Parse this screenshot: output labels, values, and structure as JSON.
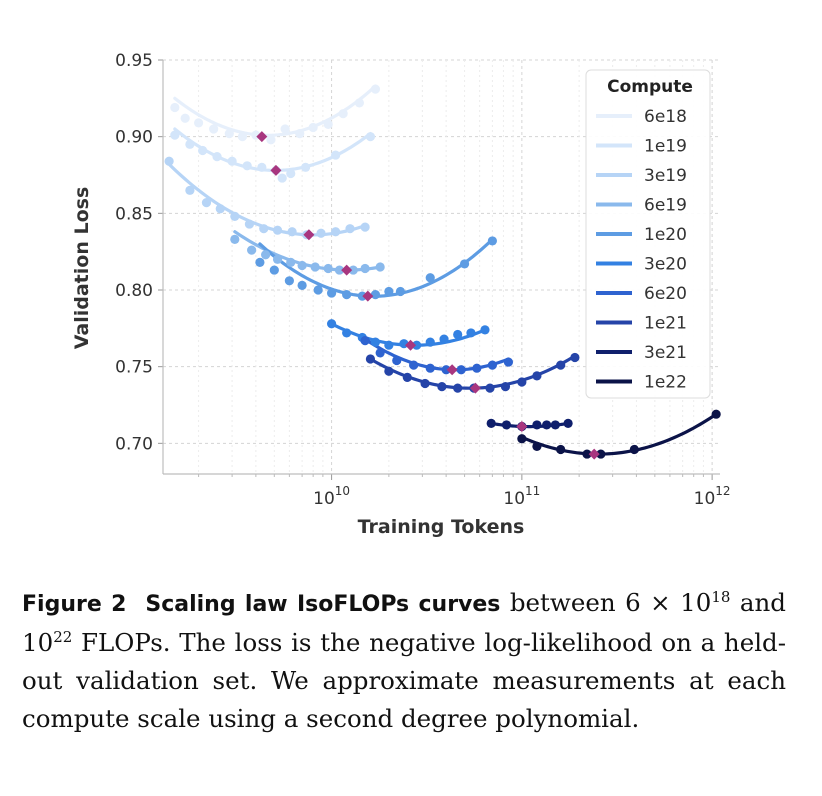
{
  "chart_data": {
    "type": "scatter",
    "title": "",
    "xlabel": "Training Tokens",
    "ylabel": "Validation Loss",
    "x_scale": "log",
    "xlim": [
      1300000000.0,
      1100000000000.0
    ],
    "ylim": [
      0.68,
      0.95
    ],
    "x_ticks": [
      {
        "value": 10000000000.0,
        "base": "10",
        "exp": "10"
      },
      {
        "value": 100000000000.0,
        "base": "10",
        "exp": "11"
      },
      {
        "value": 1000000000000.0,
        "base": "10",
        "exp": "12"
      }
    ],
    "y_ticks": [
      0.7,
      0.75,
      0.8,
      0.85,
      0.9,
      0.95
    ],
    "y_tick_labels": [
      "0.70",
      "0.75",
      "0.80",
      "0.85",
      "0.90",
      "0.95"
    ],
    "grid": true,
    "legend": {
      "title": "Compute",
      "position": "top-right"
    },
    "minimum_marker_color": "#a8367f",
    "series": [
      {
        "name": "6e18",
        "color": "#e6effb",
        "x": [
          1500000000.0,
          1700000000.0,
          2000000000.0,
          2400000000.0,
          2900000000.0,
          3400000000.0,
          4000000000.0,
          4800000000.0,
          5700000000.0,
          6800000000.0,
          8000000000.0,
          9600000000.0,
          11500000000.0,
          14000000000.0,
          17000000000.0
        ],
        "y": [
          0.919,
          0.912,
          0.909,
          0.905,
          0.902,
          0.9,
          0.901,
          0.898,
          0.905,
          0.902,
          0.906,
          0.908,
          0.915,
          0.922,
          0.931
        ],
        "fit": [
          0.925,
          0.901,
          0.933
        ],
        "min": [
          4300000000.0,
          0.9
        ]
      },
      {
        "name": "1e19",
        "color": "#d3e5fa",
        "x": [
          1500000000.0,
          1800000000.0,
          2100000000.0,
          2500000000.0,
          3000000000.0,
          3600000000.0,
          4300000000.0,
          5100000000.0,
          5500000000.0,
          6100000000.0,
          7300000000.0,
          10500000000.0,
          16000000000.0
        ],
        "y": [
          0.901,
          0.895,
          0.891,
          0.887,
          0.884,
          0.881,
          0.88,
          0.878,
          0.873,
          0.876,
          0.88,
          0.888,
          0.9
        ],
        "fit": [
          0.905,
          0.878,
          0.902
        ],
        "min": [
          5100000000.0,
          0.878
        ]
      },
      {
        "name": "3e19",
        "color": "#b6d4f6",
        "x": [
          1400000000.0,
          1800000000.0,
          2200000000.0,
          2600000000.0,
          3100000000.0,
          3700000000.0,
          4400000000.0,
          5200000000.0,
          6200000000.0,
          7400000000.0,
          8800000000.0,
          10500000000.0,
          12500000000.0,
          15000000000.0
        ],
        "y": [
          0.884,
          0.865,
          0.857,
          0.853,
          0.848,
          0.843,
          0.84,
          0.839,
          0.838,
          0.836,
          0.837,
          0.838,
          0.84,
          0.841
        ],
        "fit": [
          0.882,
          0.836,
          0.842
        ],
        "min": [
          7600000000.0,
          0.836
        ]
      },
      {
        "name": "6e19",
        "color": "#8ab9ec",
        "x": [
          3100000000.0,
          3800000000.0,
          4500000000.0,
          5200000000.0,
          6100000000.0,
          7000000000.0,
          8200000000.0,
          9600000000.0,
          11000000000.0,
          13000000000.0,
          15000000000.0,
          18000000000.0
        ],
        "y": [
          0.833,
          0.826,
          0.823,
          0.82,
          0.818,
          0.816,
          0.815,
          0.814,
          0.813,
          0.813,
          0.814,
          0.815
        ],
        "fit": [
          0.838,
          0.813,
          0.815
        ],
        "min": [
          12000000000.0,
          0.813
        ]
      },
      {
        "name": "1e20",
        "color": "#5d9ce3",
        "x": [
          4200000000.0,
          5000000000.0,
          6000000000.0,
          7000000000.0,
          8500000000.0,
          10000000000.0,
          12000000000.0,
          14500000000.0,
          17000000000.0,
          20000000000.0,
          23000000000.0,
          33000000000.0,
          50000000000.0,
          70000000000.0
        ],
        "y": [
          0.818,
          0.813,
          0.806,
          0.803,
          0.8,
          0.798,
          0.797,
          0.796,
          0.797,
          0.799,
          0.799,
          0.808,
          0.817,
          0.832
        ],
        "fit": [
          0.83,
          0.796,
          0.833
        ],
        "min": [
          15500000000.0,
          0.796
        ]
      },
      {
        "name": "3e20",
        "color": "#3381e2",
        "x": [
          10000000000.0,
          12000000000.0,
          14500000000.0,
          17000000000.0,
          20000000000.0,
          24000000000.0,
          28000000000.0,
          33000000000.0,
          39000000000.0,
          46000000000.0,
          54000000000.0,
          64000000000.0
        ],
        "y": [
          0.778,
          0.772,
          0.769,
          0.766,
          0.764,
          0.765,
          0.764,
          0.766,
          0.768,
          0.771,
          0.772,
          0.774
        ],
        "fit": [
          0.778,
          0.764,
          0.774
        ],
        "min": [
          26000000000.0,
          0.764
        ]
      },
      {
        "name": "6e20",
        "color": "#2e63d0",
        "x": [
          15000000000.0,
          18000000000.0,
          22000000000.0,
          27000000000.0,
          33000000000.0,
          40000000000.0,
          48000000000.0,
          58000000000.0,
          70000000000.0,
          85000000000.0
        ],
        "y": [
          0.767,
          0.759,
          0.754,
          0.751,
          0.749,
          0.748,
          0.748,
          0.749,
          0.751,
          0.753
        ],
        "fit": [
          0.768,
          0.748,
          0.755
        ],
        "min": [
          43000000000.0,
          0.748
        ]
      },
      {
        "name": "1e21",
        "color": "#2544a8",
        "x": [
          16000000000.0,
          20000000000.0,
          25000000000.0,
          31000000000.0,
          38000000000.0,
          46000000000.0,
          56000000000.0,
          68000000000.0,
          82000000000.0,
          100000000000.0,
          120000000000.0,
          160000000000.0,
          190000000000.0
        ],
        "y": [
          0.755,
          0.747,
          0.743,
          0.739,
          0.737,
          0.736,
          0.736,
          0.736,
          0.737,
          0.74,
          0.744,
          0.751,
          0.756
        ],
        "fit": [
          0.755,
          0.736,
          0.757
        ],
        "min": [
          57000000000.0,
          0.736
        ]
      },
      {
        "name": "3e21",
        "color": "#0f1f6c",
        "x": [
          69000000000.0,
          83000000000.0,
          100000000000.0,
          120000000000.0,
          135000000000.0,
          150000000000.0,
          175000000000.0
        ],
        "y": [
          0.713,
          0.712,
          0.711,
          0.712,
          0.712,
          0.712,
          0.713
        ],
        "fit": [
          0.713,
          0.711,
          0.713
        ],
        "min": [
          100000000000.0,
          0.711
        ]
      },
      {
        "name": "1e22",
        "color": "#0b1348",
        "x": [
          100000000000.0,
          120000000000.0,
          160000000000.0,
          220000000000.0,
          260000000000.0,
          390000000000.0,
          1050000000000.0
        ],
        "y": [
          0.703,
          0.698,
          0.696,
          0.693,
          0.693,
          0.696,
          0.719
        ],
        "fit": [
          0.704,
          0.693,
          0.719
        ],
        "min": [
          240000000000.0,
          0.693
        ]
      }
    ]
  },
  "caption": {
    "label": "Figure 2",
    "title": "Scaling law IsoFLOPs curves",
    "text1": "between 6 × 10",
    "sup1": "18",
    "text2": "and 10",
    "sup2": "22",
    "text3": "FLOPs. The loss is the negative log-likelihood on a held-out validation set. We approximate measurements at each compute scale using a second degree polynomial."
  }
}
